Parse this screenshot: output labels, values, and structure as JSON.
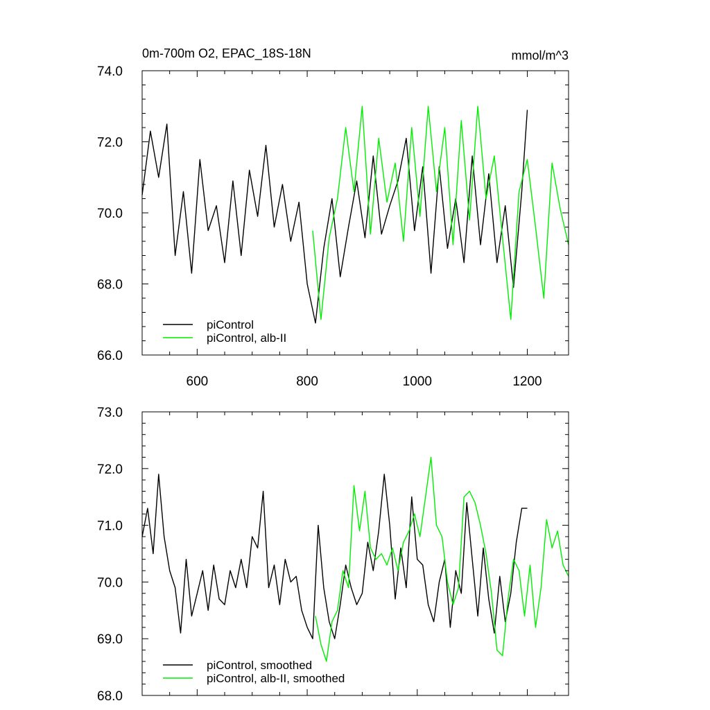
{
  "header": {
    "title": "0m-700m O2, EPAC_18S-18N",
    "units": "mmol/m^3"
  },
  "colors": {
    "black": "#000000",
    "green": "#00ee00"
  },
  "chart_data": [
    {
      "type": "line",
      "panel": "top",
      "xlim": [
        500,
        1275
      ],
      "ylim": [
        66.0,
        74.0
      ],
      "xticks": [
        600,
        800,
        1000,
        1200
      ],
      "xtick_labels": [
        "600",
        "800",
        "1000",
        "1200"
      ],
      "yticks": [
        66.0,
        68.0,
        70.0,
        72.0,
        74.0
      ],
      "ytick_labels": [
        "66.0",
        "68.0",
        "70.0",
        "72.0",
        "74.0"
      ],
      "legend": [
        "piControl",
        "piControl, alb-II"
      ],
      "legend_placement": "bottom-left",
      "grid": false,
      "series": [
        {
          "name": "piControl",
          "color": "black",
          "x": [
            500,
            515,
            530,
            545,
            560,
            575,
            590,
            605,
            620,
            635,
            650,
            665,
            680,
            695,
            710,
            725,
            740,
            755,
            770,
            785,
            800,
            815,
            830,
            845,
            860,
            875,
            890,
            905,
            920,
            935,
            950,
            965,
            980,
            995,
            1010,
            1025,
            1040,
            1055,
            1070,
            1085,
            1100,
            1115,
            1130,
            1145,
            1160,
            1175,
            1190,
            1200
          ],
          "y": [
            70.5,
            72.3,
            71.0,
            72.5,
            68.8,
            70.6,
            68.3,
            71.5,
            69.5,
            70.2,
            68.6,
            70.9,
            68.8,
            71.2,
            69.9,
            71.9,
            69.6,
            70.8,
            69.2,
            70.3,
            68.0,
            66.9,
            69.0,
            70.4,
            68.2,
            69.6,
            70.9,
            69.3,
            71.6,
            69.4,
            70.2,
            70.9,
            72.1,
            69.5,
            71.3,
            68.3,
            71.3,
            69.0,
            70.4,
            68.6,
            71.6,
            69.1,
            71.1,
            68.6,
            70.2,
            67.9,
            70.6,
            72.9
          ]
        },
        {
          "name": "piControl, alb-II",
          "color": "green",
          "x": [
            810,
            825,
            840,
            855,
            870,
            885,
            900,
            915,
            930,
            945,
            960,
            975,
            990,
            1005,
            1020,
            1035,
            1050,
            1065,
            1080,
            1095,
            1110,
            1125,
            1140,
            1155,
            1170,
            1185,
            1200,
            1215,
            1230,
            1245,
            1260,
            1275
          ],
          "y": [
            69.5,
            67.0,
            69.3,
            70.4,
            72.4,
            70.6,
            73.0,
            69.4,
            72.1,
            70.3,
            71.4,
            69.2,
            72.4,
            69.9,
            73.0,
            70.6,
            72.4,
            69.1,
            72.6,
            69.8,
            73.0,
            70.4,
            71.6,
            69.3,
            67.0,
            70.6,
            71.5,
            69.6,
            67.6,
            71.4,
            70.1,
            69.1
          ]
        }
      ]
    },
    {
      "type": "line",
      "panel": "bottom",
      "xlim": [
        500,
        1275
      ],
      "ylim": [
        68.0,
        73.0
      ],
      "xticks": [
        600,
        800,
        1000,
        1200
      ],
      "yticks": [
        68.0,
        69.0,
        70.0,
        71.0,
        72.0,
        73.0
      ],
      "ytick_labels": [
        "68.0",
        "69.0",
        "70.0",
        "71.0",
        "72.0",
        "73.0"
      ],
      "legend": [
        "piControl, smoothed",
        "piControl, alb-II, smoothed"
      ],
      "legend_placement": "bottom-left",
      "grid": false,
      "series": [
        {
          "name": "piControl, smoothed",
          "color": "black",
          "x": [
            500,
            510,
            520,
            530,
            540,
            550,
            560,
            570,
            580,
            590,
            600,
            610,
            620,
            630,
            640,
            650,
            660,
            670,
            680,
            690,
            700,
            710,
            720,
            730,
            740,
            750,
            760,
            770,
            780,
            790,
            800,
            810,
            820,
            830,
            840,
            850,
            860,
            870,
            880,
            890,
            900,
            910,
            920,
            930,
            940,
            950,
            960,
            970,
            980,
            990,
            1000,
            1010,
            1020,
            1030,
            1040,
            1050,
            1060,
            1070,
            1080,
            1090,
            1100,
            1110,
            1120,
            1130,
            1140,
            1150,
            1160,
            1170,
            1180,
            1190,
            1200
          ],
          "y": [
            70.8,
            71.3,
            70.5,
            71.9,
            70.8,
            70.2,
            69.9,
            69.1,
            70.4,
            69.4,
            69.8,
            70.2,
            69.5,
            70.3,
            69.7,
            69.6,
            70.2,
            69.9,
            70.4,
            69.9,
            70.8,
            70.6,
            71.6,
            69.9,
            70.3,
            69.6,
            70.4,
            70.0,
            70.1,
            69.5,
            69.2,
            69.0,
            71.0,
            69.9,
            69.3,
            69.0,
            69.6,
            70.3,
            69.9,
            69.6,
            69.8,
            70.7,
            70.2,
            70.9,
            71.9,
            71.0,
            69.7,
            70.6,
            69.9,
            71.5,
            70.4,
            70.3,
            69.6,
            69.3,
            70.0,
            70.4,
            69.2,
            70.2,
            69.8,
            71.4,
            70.4,
            69.4,
            70.6,
            69.7,
            69.1,
            70.1,
            69.3,
            69.8,
            70.7,
            71.3,
            71.3
          ]
        },
        {
          "name": "piControl, alb-II, smoothed",
          "color": "green",
          "x": [
            815,
            825,
            835,
            845,
            855,
            865,
            875,
            885,
            895,
            905,
            915,
            925,
            935,
            945,
            955,
            965,
            975,
            985,
            995,
            1005,
            1015,
            1025,
            1035,
            1045,
            1055,
            1065,
            1075,
            1085,
            1095,
            1105,
            1115,
            1125,
            1135,
            1145,
            1155,
            1165,
            1175,
            1185,
            1195,
            1205,
            1215,
            1225,
            1235,
            1245,
            1255,
            1265,
            1275
          ],
          "y": [
            69.4,
            68.9,
            68.6,
            69.3,
            69.5,
            70.2,
            69.9,
            71.7,
            70.9,
            71.6,
            70.6,
            70.4,
            70.5,
            70.3,
            70.6,
            70.2,
            70.7,
            70.9,
            71.2,
            70.8,
            71.5,
            72.2,
            71.0,
            70.8,
            70.0,
            69.6,
            69.9,
            71.5,
            71.6,
            71.4,
            71.0,
            70.5,
            69.8,
            68.8,
            68.7,
            69.7,
            70.4,
            70.2,
            69.4,
            70.3,
            69.2,
            69.9,
            71.1,
            70.6,
            70.9,
            70.3,
            70.1
          ]
        }
      ]
    }
  ]
}
